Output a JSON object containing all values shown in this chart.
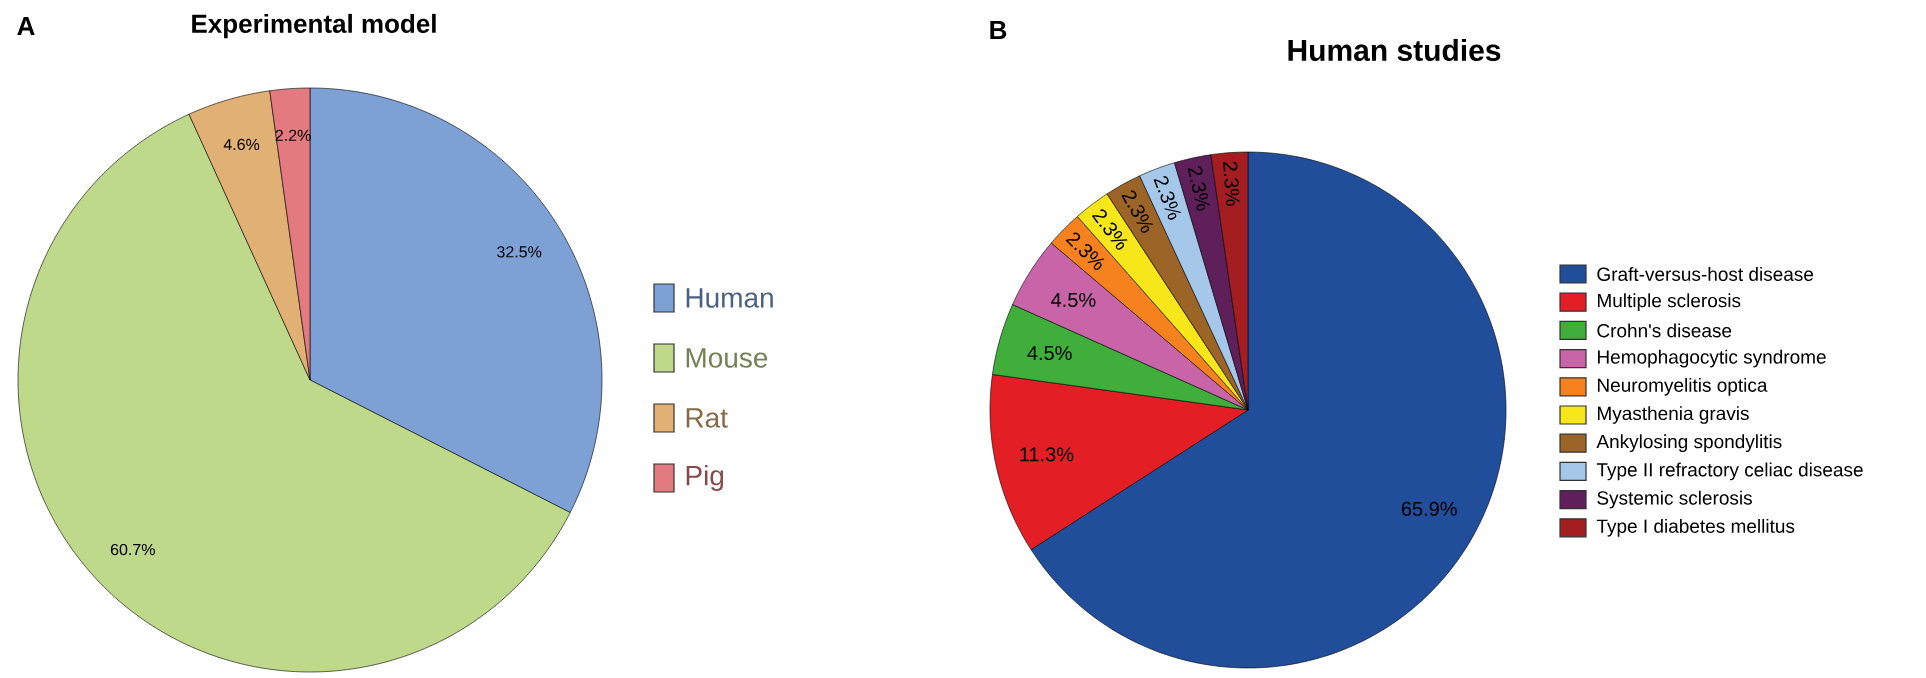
{
  "chart_data": [
    {
      "type": "pie",
      "title": "Experimental model",
      "categories": [
        "Human",
        "Mouse",
        "Rat",
        "Pig"
      ],
      "values": [
        32.5,
        60.7,
        4.6,
        2.2
      ],
      "colors": [
        "#7da0d5",
        "#bfd98a",
        "#e0b074",
        "#e37a80"
      ],
      "value_labels": [
        "32.5%",
        "60.7%",
        "4.6%",
        "2.2%"
      ],
      "legend": "right",
      "annotations": [
        "A"
      ]
    },
    {
      "type": "pie",
      "title": "Human studies",
      "categories": [
        "Graft-versus-host disease",
        "Multiple sclerosis",
        "Crohn's disease",
        "Hemophagocytic syndrome",
        "Neuromyelitis optica",
        "Myasthenia gravis",
        "Ankylosing spondylitis",
        "Type II refractory celiac disease",
        "Systemic sclerosis",
        "Type I diabetes mellitus"
      ],
      "values": [
        65.9,
        11.3,
        4.5,
        4.5,
        2.3,
        2.3,
        2.3,
        2.3,
        2.3,
        2.3
      ],
      "colors": [
        "#214e9b",
        "#e31e24",
        "#3fae3a",
        "#c964a8",
        "#f5821f",
        "#f6e61a",
        "#9c6426",
        "#a5c8ea",
        "#5e1f5a",
        "#a31d21"
      ],
      "value_labels": [
        "65.9%",
        "11.3%",
        "4.5%",
        "4.5%",
        "2.3%",
        "2.3%",
        "2.3%",
        "2.3%",
        "2.3%",
        "2.3%"
      ],
      "legend": "right",
      "annotations": [
        "B"
      ]
    }
  ]
}
